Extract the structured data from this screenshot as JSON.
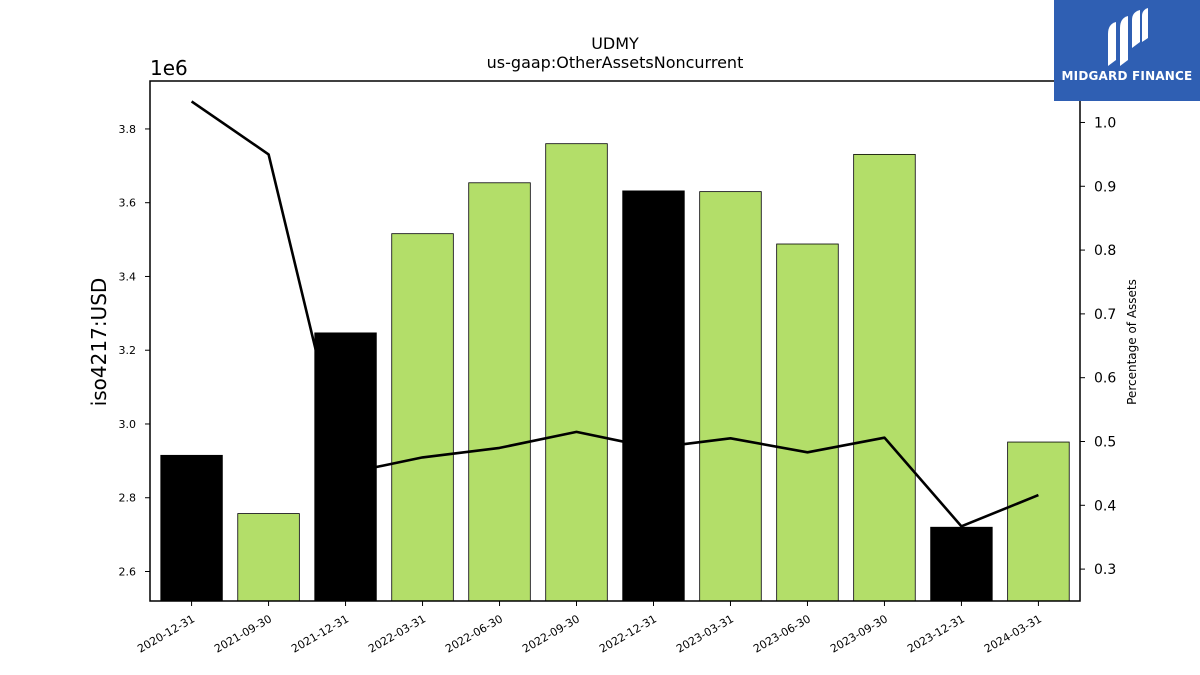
{
  "title": "UDMY",
  "subtitle": "us-gaap:OtherAssetsNoncurrent",
  "logo": {
    "text": "MIDGARD FINANCE",
    "background": "#2f5fb3",
    "icon": "midgard-logo-icon"
  },
  "chart_data": {
    "type": "bar",
    "categories": [
      "2020-12-31",
      "2021-09-30",
      "2021-12-31",
      "2022-03-31",
      "2022-06-30",
      "2022-09-30",
      "2022-12-31",
      "2023-03-31",
      "2023-06-30",
      "2023-09-30",
      "2023-12-31",
      "2024-03-31"
    ],
    "series": [
      {
        "axis": "left",
        "type": "bar",
        "values": [
          2915000,
          2757000,
          3247000,
          3516000,
          3654000,
          3760000,
          3632000,
          3630000,
          3488000,
          3731000,
          2720000,
          2951000
        ],
        "colors": [
          "#000000",
          "#b3de69",
          "#000000",
          "#b3de69",
          "#b3de69",
          "#b3de69",
          "#000000",
          "#b3de69",
          "#b3de69",
          "#b3de69",
          "#000000",
          "#b3de69"
        ]
      },
      {
        "axis": "right",
        "type": "line",
        "color": "#000000",
        "values": [
          1.033,
          0.95,
          0.45,
          0.475,
          0.49,
          0.515,
          0.49,
          0.505,
          0.483,
          0.506,
          0.367,
          0.416
        ]
      }
    ],
    "ylabel": "iso4217:USD",
    "y_offset_label": "1e6",
    "y2label": "Percentage of Assets",
    "ylim": [
      2.52,
      3.93
    ],
    "ylim_units": "millions USD",
    "yticks": [
      "2.6",
      "2.8",
      "3.0",
      "3.2",
      "3.4",
      "3.6",
      "3.8"
    ],
    "y2lim": [
      0.25,
      1.065
    ],
    "y2ticks": [
      "0.3",
      "0.4",
      "0.5",
      "0.6",
      "0.7",
      "0.8",
      "0.9",
      "1.0"
    ],
    "grid": false,
    "legend": "none"
  }
}
